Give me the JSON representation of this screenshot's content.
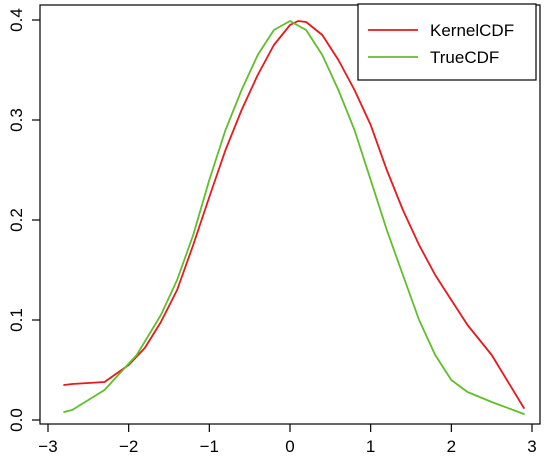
{
  "chart_data": {
    "type": "line",
    "title": "",
    "xlabel": "",
    "ylabel": "",
    "xlim": [
      -3,
      3
    ],
    "ylim": [
      0,
      0.4
    ],
    "x_ticks": [
      "−3",
      "−2",
      "−1",
      "0",
      "1",
      "2",
      "3"
    ],
    "y_ticks": [
      "0.0",
      "0.1",
      "0.2",
      "0.3",
      "0.4"
    ],
    "frame": "box",
    "legend_position": "top-right",
    "series": [
      {
        "name": "KernelCDF",
        "color": "#e8181c",
        "x": [
          -2.8,
          -2.7,
          -2.3,
          -2.0,
          -1.8,
          -1.6,
          -1.4,
          -1.2,
          -1.0,
          -0.8,
          -0.6,
          -0.4,
          -0.2,
          0.0,
          0.1,
          0.2,
          0.4,
          0.6,
          0.8,
          1.0,
          1.2,
          1.4,
          1.6,
          1.8,
          2.0,
          2.2,
          2.5,
          2.9
        ],
        "y": [
          0.035,
          0.036,
          0.038,
          0.055,
          0.072,
          0.098,
          0.13,
          0.175,
          0.223,
          0.27,
          0.31,
          0.345,
          0.375,
          0.395,
          0.399,
          0.398,
          0.385,
          0.36,
          0.33,
          0.295,
          0.25,
          0.21,
          0.175,
          0.145,
          0.12,
          0.095,
          0.065,
          0.012
        ]
      },
      {
        "name": "TrueCDF",
        "color": "#5fbf2a",
        "x": [
          -2.8,
          -2.7,
          -2.3,
          -1.9,
          -1.6,
          -1.4,
          -1.2,
          -1.0,
          -0.8,
          -0.6,
          -0.4,
          -0.2,
          0.0,
          0.2,
          0.4,
          0.6,
          0.8,
          1.0,
          1.2,
          1.4,
          1.6,
          1.8,
          2.0,
          2.2,
          2.5,
          2.9
        ],
        "y": [
          0.008,
          0.01,
          0.03,
          0.065,
          0.105,
          0.14,
          0.185,
          0.24,
          0.29,
          0.33,
          0.365,
          0.39,
          0.399,
          0.39,
          0.365,
          0.33,
          0.29,
          0.24,
          0.19,
          0.145,
          0.1,
          0.065,
          0.04,
          0.028,
          0.018,
          0.006
        ]
      }
    ]
  }
}
